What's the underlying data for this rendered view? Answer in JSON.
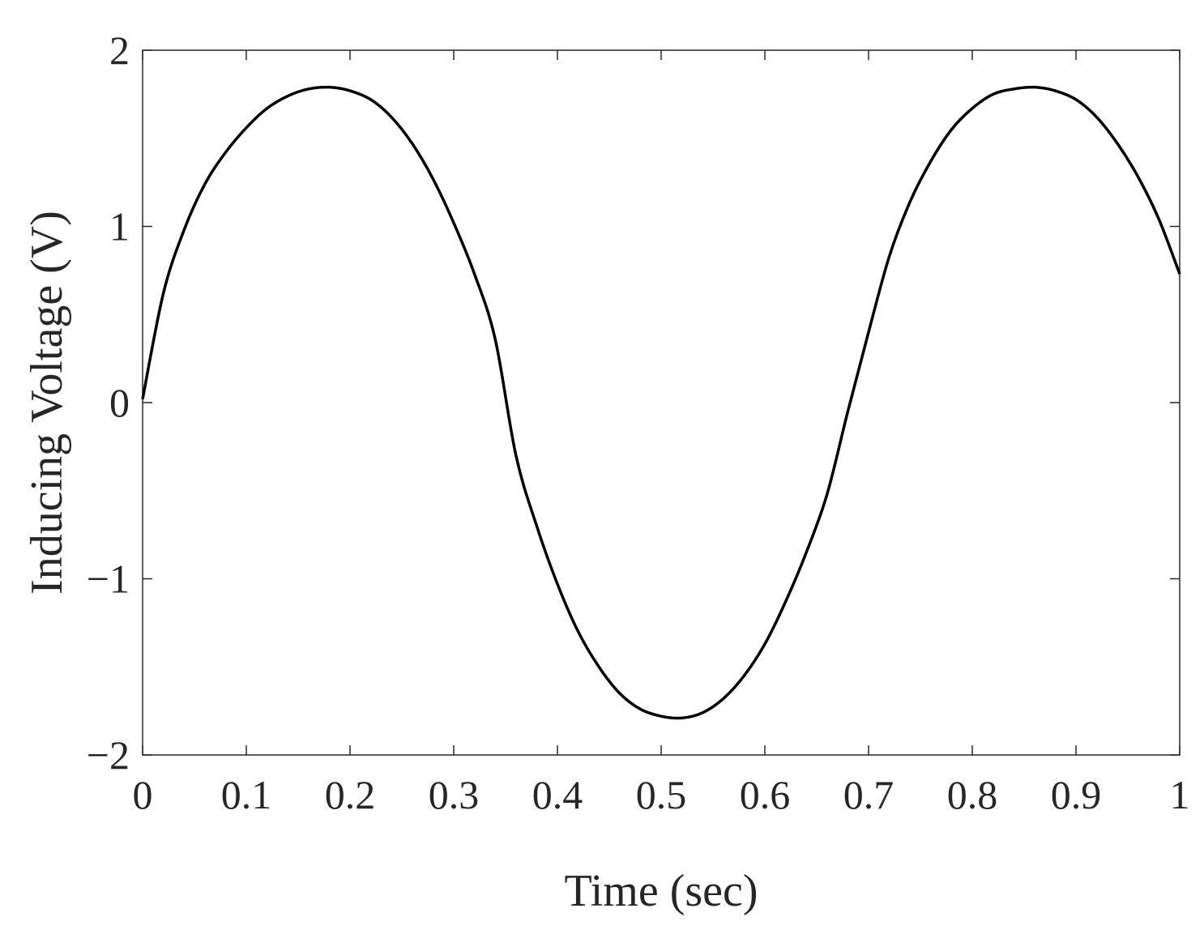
{
  "chart_data": {
    "type": "line",
    "title": "",
    "xlabel": "Time (sec)",
    "ylabel": "Inducing Voltage (V)",
    "xlim": [
      0,
      1
    ],
    "ylim": [
      -2,
      2
    ],
    "xticks": [
      0,
      0.1,
      0.2,
      0.3,
      0.4,
      0.5,
      0.6,
      0.7,
      0.8,
      0.9,
      1
    ],
    "xtick_labels": [
      "0",
      "0.1",
      "0.2",
      "0.3",
      "0.4",
      "0.5",
      "0.6",
      "0.7",
      "0.8",
      "0.9",
      "1"
    ],
    "yticks": [
      -2,
      -1,
      0,
      1,
      2
    ],
    "ytick_labels": [
      "−2",
      "−1",
      "0",
      "1",
      "2"
    ],
    "grid": false,
    "line_color": "#000000",
    "series": [
      {
        "x": [
          0,
          0.02,
          0.04,
          0.06,
          0.08,
          0.1,
          0.12,
          0.14,
          0.16,
          0.18,
          0.2,
          0.22,
          0.24,
          0.26,
          0.28,
          0.3,
          0.32,
          0.34,
          0.36,
          0.38,
          0.4,
          0.42,
          0.44,
          0.46,
          0.48,
          0.5,
          0.52,
          0.54,
          0.56,
          0.58,
          0.6,
          0.62,
          0.64,
          0.66,
          0.68,
          0.7,
          0.72,
          0.74,
          0.76,
          0.78,
          0.8,
          0.82,
          0.84,
          0.86,
          0.88,
          0.9,
          0.92,
          0.94,
          0.96,
          0.98,
          1.0
        ],
        "y": [
          0.02,
          0.62,
          0.98,
          1.24,
          1.42,
          1.56,
          1.67,
          1.74,
          1.78,
          1.79,
          1.77,
          1.72,
          1.62,
          1.47,
          1.27,
          1.02,
          0.73,
          0.36,
          -0.3,
          -0.7,
          -1.03,
          -1.3,
          -1.5,
          -1.65,
          -1.74,
          -1.78,
          -1.79,
          -1.76,
          -1.68,
          -1.55,
          -1.37,
          -1.13,
          -0.85,
          -0.52,
          -0.05,
          0.4,
          0.83,
          1.14,
          1.37,
          1.55,
          1.67,
          1.75,
          1.78,
          1.79,
          1.77,
          1.72,
          1.62,
          1.47,
          1.28,
          1.04,
          0.73
        ]
      }
    ]
  }
}
